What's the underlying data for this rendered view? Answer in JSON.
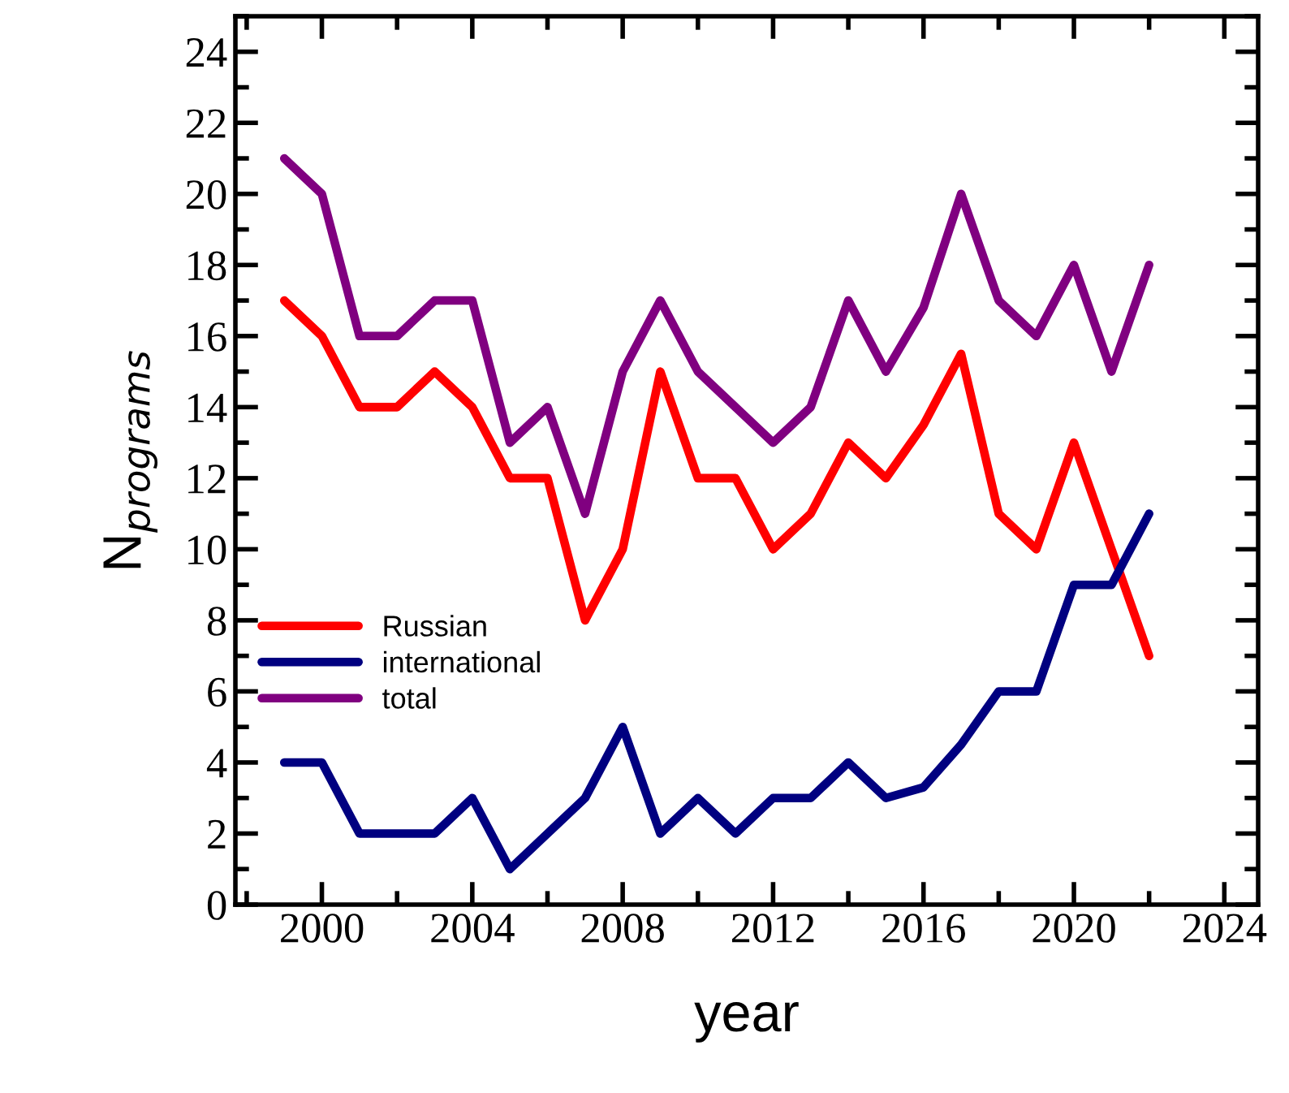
{
  "chart_data": {
    "type": "line",
    "xlabel": "year",
    "ylabel": "N$_{programs}$",
    "x": [
      1999,
      2000,
      2001,
      2002,
      2003,
      2004,
      2005,
      2006,
      2007,
      2008,
      2009,
      2010,
      2011,
      2012,
      2013,
      2014,
      2015,
      2016,
      2017,
      2018,
      2019,
      2020,
      2021,
      2022
    ],
    "series": [
      {
        "name": "Russian",
        "color": "#ff0000",
        "values": [
          17,
          16,
          14,
          14,
          15,
          14,
          12,
          12,
          8,
          10,
          15,
          12,
          12,
          10,
          11,
          13,
          12,
          13.5,
          15.5,
          11,
          10,
          13,
          10,
          7
        ]
      },
      {
        "name": "international",
        "color": "#000080",
        "values": [
          4,
          4,
          2,
          2,
          2,
          3,
          1,
          2,
          3,
          5,
          2,
          3,
          2,
          3,
          3,
          4,
          3,
          3.3,
          4.5,
          6,
          6,
          9,
          9,
          11
        ]
      },
      {
        "name": "total",
        "color": "#800080",
        "values": [
          21,
          20,
          16,
          16,
          17,
          17,
          13,
          14,
          11,
          15,
          17,
          15,
          14,
          13,
          14,
          17,
          15,
          16.8,
          20,
          17,
          16,
          18,
          15,
          18
        ]
      }
    ],
    "xlim": [
      1997.7,
      2024.9
    ],
    "ylim": [
      0,
      25
    ],
    "xticks": [
      2000,
      2004,
      2008,
      2012,
      2016,
      2020,
      2024
    ],
    "yticks": [
      0,
      2,
      4,
      6,
      8,
      10,
      12,
      14,
      16,
      18,
      20,
      22,
      24
    ],
    "grid": false,
    "legend": "left",
    "marker": "none",
    "line_style": "solid"
  }
}
